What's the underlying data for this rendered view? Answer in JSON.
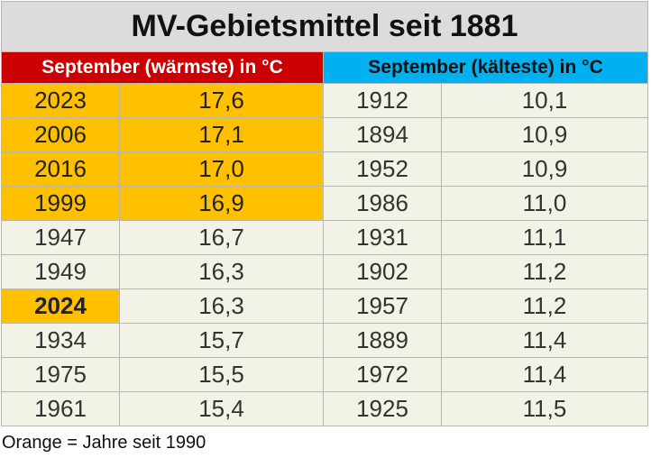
{
  "title": "MV-Gebietsmittel seit 1881",
  "warm_header": "September (wärmste) in °C",
  "cold_header": "September (kälteste) in °C",
  "rows": [
    {
      "warm_year": "2023",
      "warm_value": "17,6",
      "cold_year": "1912",
      "cold_value": "10,1"
    },
    {
      "warm_year": "2006",
      "warm_value": "17,1",
      "cold_year": "1894",
      "cold_value": "10,9"
    },
    {
      "warm_year": "2016",
      "warm_value": "17,0",
      "cold_year": "1952",
      "cold_value": "10,9"
    },
    {
      "warm_year": "1999",
      "warm_value": "16,9",
      "cold_year": "1986",
      "cold_value": "11,0"
    },
    {
      "warm_year": "1947",
      "warm_value": "16,7",
      "cold_year": "1931",
      "cold_value": "11,1"
    },
    {
      "warm_year": "1949",
      "warm_value": "16,3",
      "cold_year": "1902",
      "cold_value": "11,2"
    },
    {
      "warm_year": "2024",
      "warm_value": "16,3",
      "cold_year": "1957",
      "cold_value": "11,2"
    },
    {
      "warm_year": "1934",
      "warm_value": "15,7",
      "cold_year": "1889",
      "cold_value": "11,4"
    },
    {
      "warm_year": "1975",
      "warm_value": "15,5",
      "cold_year": "1972",
      "cold_value": "11,4"
    },
    {
      "warm_year": "1961",
      "warm_value": "15,4",
      "cold_year": "1925",
      "cold_value": "11,5"
    }
  ],
  "footnote": "Orange = Jahre seit 1990",
  "colors": {
    "warm_header": "#cc0000",
    "cold_header": "#00b0f0",
    "highlight_orange": "#ffc000",
    "cell_background": "#f2f2e6",
    "title_background": "#dcdcdc"
  }
}
